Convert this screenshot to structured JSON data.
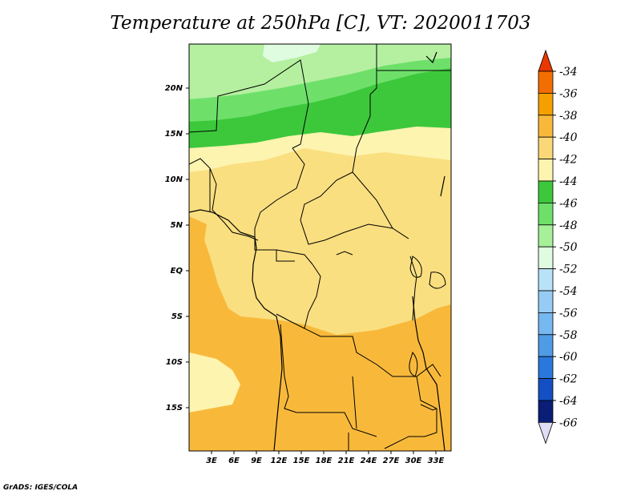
{
  "title": "Temperature at 250hPa [C], VT: 2020011703",
  "credit": "GrADS: IGES/COLA",
  "map": {
    "region": "Central Africa",
    "lon_range": [
      0,
      35
    ],
    "lat_range": [
      -20,
      25
    ],
    "lat_labels": [
      "20N",
      "15N",
      "10N",
      "5N",
      "EQ",
      "5S",
      "10S",
      "15S"
    ],
    "lon_labels": [
      "3E",
      "6E",
      "9E",
      "12E",
      "15E",
      "18E",
      "21E",
      "24E",
      "27E",
      "30E",
      "33E"
    ]
  },
  "colorbar": {
    "levels": [
      "-34",
      "-36",
      "-38",
      "-40",
      "-42",
      "-44",
      "-46",
      "-48",
      "-50",
      "-52",
      "-54",
      "-56",
      "-58",
      "-60",
      "-62",
      "-64",
      "-66"
    ],
    "colors": [
      "#e83800",
      "#f26e00",
      "#f5a000",
      "#f8b93b",
      "#fad878",
      "#fdf4b0",
      "#3dc83c",
      "#6ee06a",
      "#a5f098",
      "#e0fce0",
      "#b8e2f8",
      "#96ccf4",
      "#76b8f0",
      "#509be6",
      "#2a78dc",
      "#1450c4",
      "#0a1e78",
      "#e0dcf4"
    ]
  },
  "colors": {
    "lightgreen": "#b4f0a0",
    "midgreen": "#6ee06a",
    "darkgreen": "#3dc83c",
    "palecyan": "#e0fce0",
    "paleyellow": "#fdf4b0",
    "lightyellow": "#fadf80",
    "orange": "#f8b93b"
  }
}
